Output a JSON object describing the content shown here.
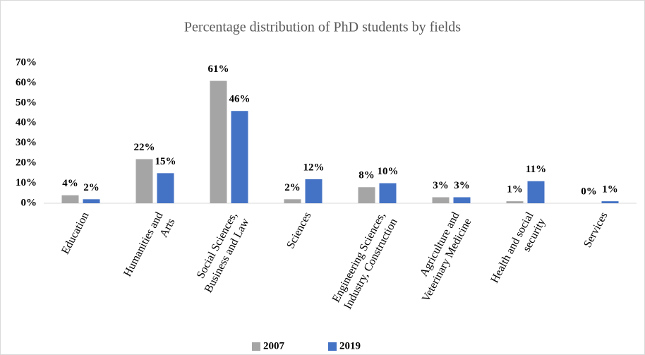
{
  "chart_data": {
    "type": "bar",
    "title": "Percentage distribution of PhD students by fields",
    "categories": [
      [
        "Education"
      ],
      [
        "Humanities and",
        "Arts"
      ],
      [
        "Social Sciences,",
        "Business and Law"
      ],
      [
        "Sciences"
      ],
      [
        "Engineering Sciences,",
        "Industry, Construction"
      ],
      [
        "Agriculture and",
        "Veterinary Medicine"
      ],
      [
        "Health and social",
        "security"
      ],
      [
        "Services"
      ]
    ],
    "series": [
      {
        "name": "2007",
        "color": "#a5a5a5",
        "values": [
          4,
          22,
          61,
          2,
          8,
          3,
          1,
          0
        ],
        "value_labels": [
          "4%",
          "22%",
          "61%",
          "2%",
          "8%",
          "3%",
          "1%",
          "0%"
        ]
      },
      {
        "name": "2019",
        "color": "#4472c4",
        "values": [
          2,
          15,
          46,
          12,
          10,
          3,
          11,
          1
        ],
        "value_labels": [
          "2%",
          "15%",
          "46%",
          "12%",
          "10%",
          "3%",
          "11%",
          "1%"
        ]
      }
    ],
    "ylim": [
      0,
      70
    ],
    "yticks": [
      {
        "value": 0,
        "label": "0%"
      },
      {
        "value": 10,
        "label": "10%"
      },
      {
        "value": 20,
        "label": "20%"
      },
      {
        "value": 30,
        "label": "30%"
      },
      {
        "value": 40,
        "label": "40%"
      },
      {
        "value": 50,
        "label": "50%"
      },
      {
        "value": 60,
        "label": "60%"
      },
      {
        "value": 70,
        "label": "70%"
      }
    ],
    "legend": "bottom"
  }
}
